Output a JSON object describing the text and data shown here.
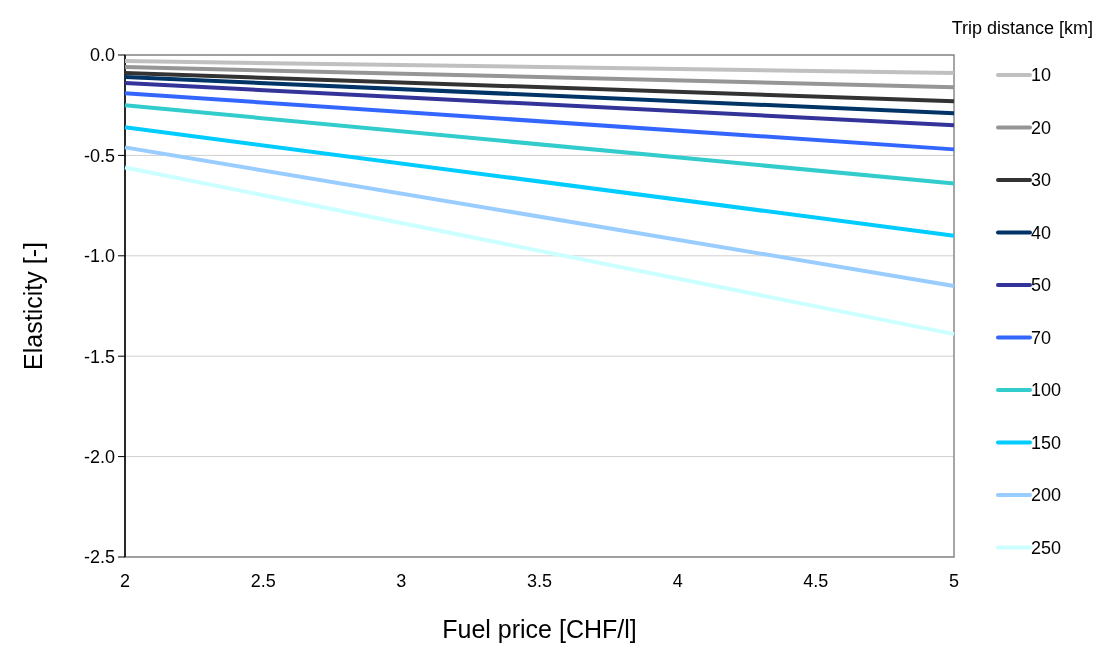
{
  "chart_data": {
    "type": "line",
    "xlabel": "Fuel price [CHF/l]",
    "ylabel": "Elasticity [-]",
    "legend_title": "Trip distance [km]",
    "x": [
      2,
      5
    ],
    "xlim": [
      2,
      5
    ],
    "xticks": [
      2,
      2.5,
      3,
      3.5,
      4,
      4.5,
      5
    ],
    "ylim": [
      -2.5,
      0
    ],
    "yticks": [
      {
        "value": -2.5,
        "label": "-2.5"
      },
      {
        "value": -2,
        "label": "-2.0"
      },
      {
        "value": -1.5,
        "label": "-1.5"
      },
      {
        "value": -1,
        "label": "-1.0"
      },
      {
        "value": -0.5,
        "label": "-0.5"
      },
      {
        "value": 0,
        "label": "0.0"
      }
    ],
    "grid": "y",
    "legend": "right",
    "marker": "none",
    "line_style": "solid",
    "series": [
      {
        "name": "10",
        "color": "#c0c0c0",
        "values": [
          -0.03,
          -0.09
        ]
      },
      {
        "name": "20",
        "color": "#969696",
        "values": [
          -0.06,
          -0.16
        ]
      },
      {
        "name": "30",
        "color": "#333333",
        "values": [
          -0.09,
          -0.23
        ]
      },
      {
        "name": "40",
        "color": "#003366",
        "values": [
          -0.11,
          -0.29
        ]
      },
      {
        "name": "50",
        "color": "#333399",
        "values": [
          -0.14,
          -0.35
        ]
      },
      {
        "name": "70",
        "color": "#3366ff",
        "values": [
          -0.19,
          -0.47
        ]
      },
      {
        "name": "100",
        "color": "#33cccc",
        "values": [
          -0.25,
          -0.64
        ]
      },
      {
        "name": "150",
        "color": "#00ccff",
        "values": [
          -0.36,
          -0.9
        ]
      },
      {
        "name": "200",
        "color": "#99ccff",
        "values": [
          -0.46,
          -1.15
        ]
      },
      {
        "name": "250",
        "color": "#ccffff",
        "values": [
          -0.56,
          -1.39
        ]
      }
    ]
  }
}
